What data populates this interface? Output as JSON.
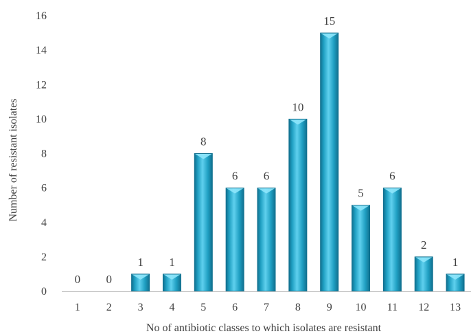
{
  "chart_data": {
    "type": "bar",
    "title": "",
    "xlabel": "No of antibiotic classes to which isolates are resistant",
    "ylabel": "Number of resistant isolates",
    "categories": [
      "1",
      "2",
      "3",
      "4",
      "5",
      "6",
      "7",
      "8",
      "9",
      "10",
      "11",
      "12",
      "13"
    ],
    "values": [
      0,
      0,
      1,
      1,
      8,
      6,
      6,
      10,
      15,
      5,
      6,
      2,
      1
    ],
    "ylim": [
      0,
      16
    ],
    "yticks": [
      0,
      2,
      4,
      6,
      8,
      10,
      12,
      14,
      16
    ],
    "data_labels": true,
    "grid": false,
    "legend": "none",
    "colors": {
      "bar_main": "#1f9fc2",
      "bar_light": "#5fd0ee",
      "bar_dark": "#11708f",
      "bar_cap": "#8ee6fb",
      "axis": "#bfbfbf",
      "text": "#404040"
    }
  }
}
